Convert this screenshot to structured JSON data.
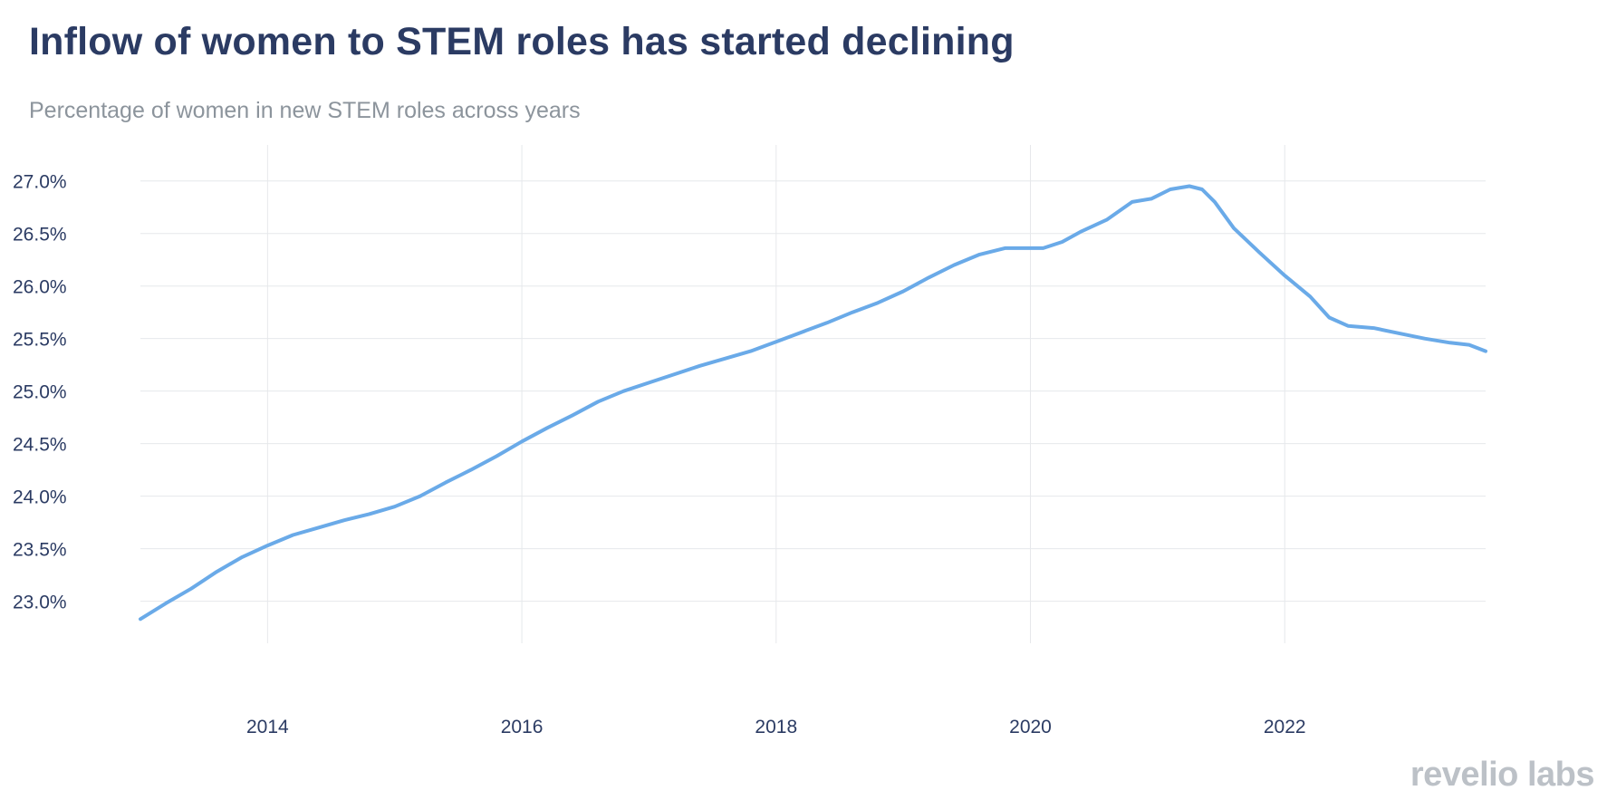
{
  "chart_data": {
    "type": "line",
    "title": "Inflow of women to STEM roles has started declining",
    "subtitle": "Percentage of women in new STEM roles across years",
    "xlabel": "",
    "ylabel": "",
    "xlim": [
      2013.0,
      2023.58
    ],
    "ylim": [
      22.6,
      27.17
    ],
    "y_ticks": [
      23.0,
      23.5,
      24.0,
      24.5,
      25.0,
      25.5,
      26.0,
      26.5,
      27.0
    ],
    "y_tick_labels": [
      "23.0%",
      "23.5%",
      "24.0%",
      "24.5%",
      "25.0%",
      "25.5%",
      "26.0%",
      "26.5%",
      "27.0%"
    ],
    "x_ticks": [
      2014,
      2016,
      2018,
      2020,
      2022
    ],
    "x_tick_labels": [
      "2014",
      "2016",
      "2018",
      "2020",
      "2022"
    ],
    "grid": true,
    "line_color": "#6aaae8",
    "series": [
      {
        "name": "Percentage of women in new STEM roles",
        "x": [
          2013.0,
          2013.2,
          2013.4,
          2013.6,
          2013.8,
          2014.0,
          2014.2,
          2014.4,
          2014.6,
          2014.8,
          2015.0,
          2015.2,
          2015.4,
          2015.6,
          2015.8,
          2016.0,
          2016.2,
          2016.4,
          2016.6,
          2016.8,
          2017.0,
          2017.2,
          2017.4,
          2017.6,
          2017.8,
          2018.0,
          2018.2,
          2018.4,
          2018.6,
          2018.8,
          2019.0,
          2019.2,
          2019.4,
          2019.6,
          2019.8,
          2019.95,
          2020.1,
          2020.25,
          2020.4,
          2020.6,
          2020.8,
          2020.95,
          2021.1,
          2021.25,
          2021.35,
          2021.45,
          2021.6,
          2021.8,
          2022.0,
          2022.2,
          2022.35,
          2022.5,
          2022.7,
          2022.9,
          2023.1,
          2023.3,
          2023.45,
          2023.58
        ],
        "y": [
          22.83,
          22.98,
          23.12,
          23.28,
          23.42,
          23.53,
          23.63,
          23.7,
          23.77,
          23.83,
          23.9,
          24.0,
          24.13,
          24.25,
          24.38,
          24.52,
          24.65,
          24.77,
          24.9,
          25.0,
          25.08,
          25.16,
          25.24,
          25.31,
          25.38,
          25.47,
          25.56,
          25.65,
          25.75,
          25.84,
          25.95,
          26.08,
          26.2,
          26.3,
          26.36,
          26.36,
          26.36,
          26.42,
          26.52,
          26.63,
          26.8,
          26.83,
          26.92,
          26.95,
          26.92,
          26.8,
          26.55,
          26.32,
          26.1,
          25.9,
          25.7,
          25.62,
          25.6,
          25.55,
          25.5,
          25.46,
          25.44,
          25.38
        ]
      }
    ]
  },
  "branding": {
    "logo_text": "revelio labs"
  }
}
